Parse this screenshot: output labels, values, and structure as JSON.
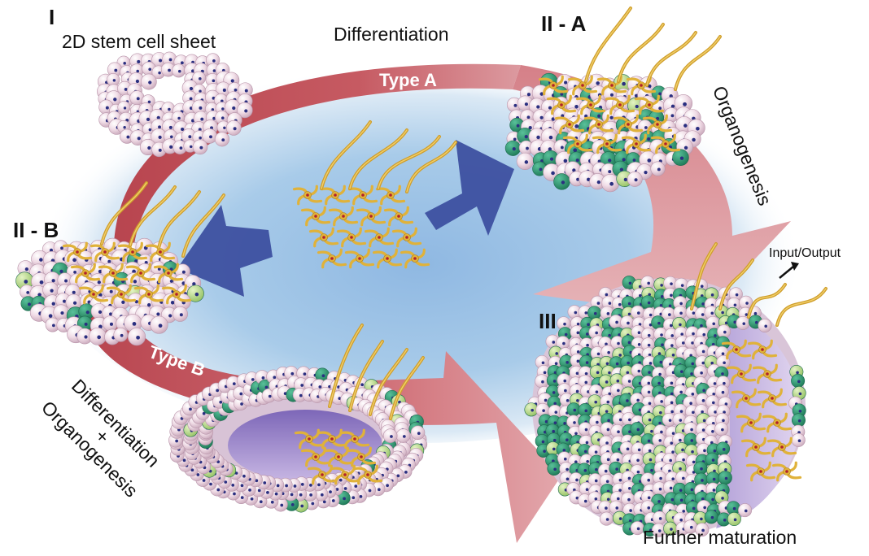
{
  "stages": {
    "I": "I",
    "II_A": "II - A",
    "II_B": "II - B",
    "III": "III"
  },
  "labels": {
    "stem_sheet": "2D stem cell sheet",
    "differentiation_top": "Differentiation",
    "type_a": "Type A",
    "type_b": "Type B",
    "organogenesis": "Organogenesis",
    "input_output": "Input/Output",
    "diff_organo_line1": "Differentiation",
    "diff_organo_line2": "+",
    "diff_organo_line3": "Organogenesis",
    "further_maturation": "Further maturation"
  },
  "colors": {
    "background_glow": "#9fc3e6",
    "cycle_arrow": "#c0505a",
    "blue_arrow": "#3d50a0",
    "stem_cell": "#f0dce6",
    "stem_cell_nucleus": "#2a2f80",
    "green_cell": "#2f9a72",
    "light_green_cell": "#a9d07a",
    "neuron": "#e0b23a",
    "neuron_core": "#b0202c"
  }
}
